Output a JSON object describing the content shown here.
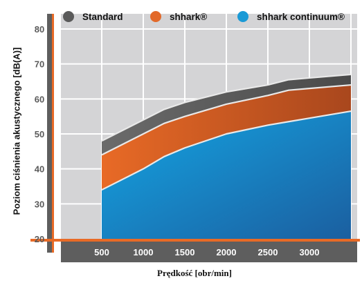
{
  "chart_data": {
    "type": "area",
    "xlabel": "Prędkość [obr/min]",
    "ylabel": "Poziom ciśnienia akustycznego [dB(A)]",
    "x_ticks": [
      "500",
      "1000",
      "1500",
      "2000",
      "2500",
      "3000"
    ],
    "y_ticks": [
      "20",
      "30",
      "40",
      "50",
      "60",
      "70",
      "80"
    ],
    "ylim": [
      20,
      80
    ],
    "grid": true,
    "legend_position": "top",
    "x": [
      500,
      1000,
      1250,
      1500,
      2000,
      2500,
      2750,
      3000,
      3500
    ],
    "series": [
      {
        "name": "Standard",
        "color": "#5a5a5a",
        "values": [
          48,
          54,
          57,
          59,
          62,
          64,
          65.5,
          66,
          67
        ]
      },
      {
        "name": "shhark®",
        "color": "#e2692a",
        "values": [
          44,
          50,
          53,
          55,
          58.5,
          61,
          62.5,
          63,
          64
        ]
      },
      {
        "name": "shhark continuum®",
        "color": "#1a9ad6",
        "values": [
          34,
          40,
          43.5,
          46,
          50,
          52.5,
          53.5,
          54.5,
          56.5
        ]
      }
    ]
  }
}
